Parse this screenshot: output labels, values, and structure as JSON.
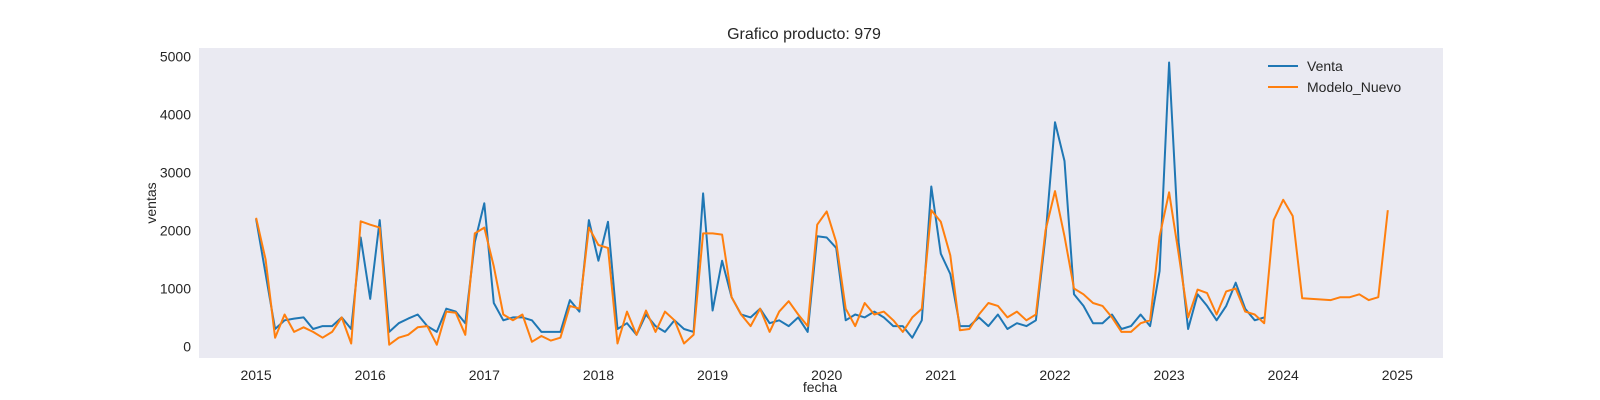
{
  "chart_data": {
    "type": "line",
    "title": "Grafico producto: 979",
    "xlabel": "fecha",
    "ylabel": "ventas",
    "xlim": [
      2014.5,
      2025.4
    ],
    "ylim": [
      -200,
      5150
    ],
    "xticks": [
      2015,
      2016,
      2017,
      2018,
      2019,
      2020,
      2021,
      2022,
      2023,
      2024,
      2025
    ],
    "yticks": [
      0,
      1000,
      2000,
      3000,
      4000,
      5000
    ],
    "grid": false,
    "legend": "top-right",
    "colors": {
      "background": "#eaeaf2",
      "Venta": "#1f77b4",
      "Modelo_Nuevo": "#ff7f0e"
    },
    "series": [
      {
        "name": "Venta",
        "x_start": 2015,
        "x_step": 0.0833333,
        "values": [
          2200,
          1250,
          300,
          450,
          480,
          500,
          300,
          350,
          350,
          500,
          300,
          1880,
          820,
          2180,
          250,
          400,
          480,
          550,
          350,
          250,
          650,
          600,
          400,
          1800,
          2470,
          750,
          450,
          500,
          500,
          450,
          250,
          250,
          250,
          800,
          600,
          2180,
          1480,
          2150,
          300,
          400,
          200,
          550,
          350,
          250,
          450,
          300,
          250,
          2640,
          620,
          1480,
          850,
          550,
          500,
          650,
          400,
          450,
          350,
          500,
          250,
          1900,
          1880,
          1700,
          450,
          550,
          500,
          600,
          500,
          350,
          350,
          150,
          450,
          2760,
          1600,
          1250,
          350,
          350,
          500,
          350,
          550,
          300,
          400,
          350,
          450,
          1900,
          3870,
          3200,
          900,
          700,
          400,
          400,
          550,
          300,
          350,
          550,
          350,
          1300,
          4900,
          1800,
          300,
          900,
          700,
          450,
          700,
          1100,
          650,
          450,
          500
        ]
      },
      {
        "name": "Modelo_Nuevo",
        "x_start": 2015,
        "x_step": 0.0833333,
        "values": [
          2220,
          1500,
          150,
          550,
          250,
          330,
          250,
          150,
          250,
          500,
          50,
          2160,
          2100,
          2050,
          30,
          150,
          200,
          330,
          350,
          30,
          600,
          580,
          200,
          1950,
          2050,
          1380,
          550,
          450,
          550,
          80,
          180,
          100,
          150,
          700,
          650,
          2050,
          1750,
          1700,
          50,
          600,
          200,
          620,
          250,
          600,
          450,
          50,
          200,
          1950,
          1950,
          1930,
          850,
          550,
          350,
          650,
          250,
          600,
          780,
          550,
          350,
          2100,
          2330,
          1800,
          650,
          350,
          750,
          550,
          600,
          450,
          250,
          500,
          650,
          2350,
          2150,
          1570,
          280,
          300,
          550,
          750,
          700,
          500,
          600,
          450,
          550,
          2000,
          2680,
          1900,
          1000,
          900,
          750,
          700,
          500,
          250,
          250,
          400,
          450,
          1900,
          2660,
          1600,
          500,
          980,
          920,
          550,
          950,
          1000,
          600,
          550,
          400,
          2180,
          2530,
          2250,
          830,
          820,
          810,
          800,
          850,
          850,
          900,
          800,
          850,
          2350
        ]
      }
    ]
  }
}
